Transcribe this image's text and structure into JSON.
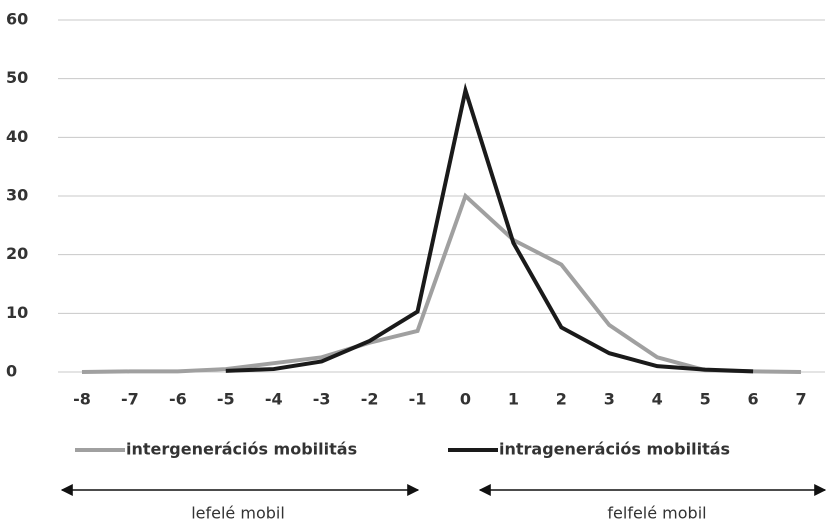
{
  "chart_data": {
    "type": "line",
    "x": [
      -8,
      -7,
      -6,
      -5,
      -4,
      -3,
      -2,
      -1,
      0,
      1,
      2,
      3,
      4,
      5,
      6,
      7
    ],
    "series": [
      {
        "name": "intergenerációs mobilitás",
        "color": "#a0a0a0",
        "values": [
          0,
          0.1,
          0.1,
          0.5,
          1.5,
          2.5,
          5,
          7,
          30,
          22.5,
          18.3,
          8,
          2.5,
          0.3,
          0.1,
          0
        ]
      },
      {
        "name": "intragenerációs mobilitás",
        "color": "#1a1a1a",
        "values": [
          null,
          null,
          null,
          0.2,
          0.5,
          1.8,
          5.3,
          10.3,
          48,
          22,
          7.6,
          3.2,
          1,
          0.4,
          0.1,
          null
        ]
      }
    ],
    "xlim": [
      -8.5,
      7.5
    ],
    "xticks": [
      -8,
      -7,
      -6,
      -5,
      -4,
      -3,
      -2,
      -1,
      0,
      1,
      2,
      3,
      4,
      5,
      6,
      7
    ],
    "ylim": [
      0,
      60
    ],
    "yticks": [
      0,
      10,
      20,
      30,
      40,
      50,
      60
    ],
    "grid": true,
    "annotations": [
      "lefelé mobil",
      "felfelé mobil"
    ]
  }
}
